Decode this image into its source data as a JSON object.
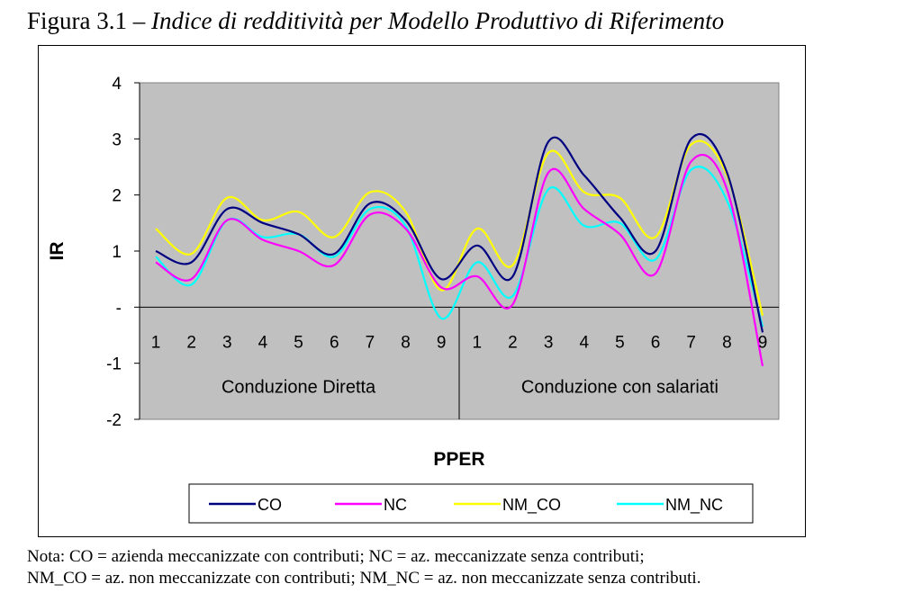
{
  "caption": {
    "prefix": "Figura 3.1 – ",
    "title": "Indice di redditività per Modello Produttivo di Riferimento"
  },
  "notes": [
    "Nota: CO = azienda meccanizzate con contributi; NC = az. meccanizzate senza contributi;",
    "NM_CO =  az. non meccanizzate con contributi; NM_NC  = az. non meccanizzate senza contributi."
  ],
  "chart_data": {
    "type": "line",
    "title": "",
    "xlabel": "PPER",
    "ylabel": "IR",
    "ylim": [
      -2,
      4
    ],
    "yticks": [
      {
        "value": 4,
        "label": "4"
      },
      {
        "value": 3,
        "label": "3"
      },
      {
        "value": 2,
        "label": "2"
      },
      {
        "value": 1,
        "label": "1"
      },
      {
        "value": 0,
        "label": "-"
      },
      {
        "value": -1,
        "label": "-1"
      },
      {
        "value": -2,
        "label": "-2"
      }
    ],
    "groups": [
      {
        "label": "Conduzione Diretta",
        "categories": [
          "1",
          "2",
          "3",
          "4",
          "5",
          "6",
          "7",
          "8",
          "9"
        ]
      },
      {
        "label": "Conduzione con salariati",
        "categories": [
          "1",
          "2",
          "3",
          "4",
          "5",
          "6",
          "7",
          "8",
          "9"
        ]
      }
    ],
    "background": "#c0c0c0",
    "grid": false,
    "legend_position": "bottom",
    "series": [
      {
        "name": "CO",
        "color": "#000080",
        "values": [
          1.0,
          0.8,
          1.75,
          1.5,
          1.3,
          0.95,
          1.85,
          1.55,
          0.5,
          1.1,
          0.55,
          2.95,
          2.35,
          1.6,
          1.0,
          3.0,
          2.4,
          -0.45
        ]
      },
      {
        "name": "NC",
        "color": "#ff00ff",
        "values": [
          0.8,
          0.5,
          1.55,
          1.2,
          1.0,
          0.75,
          1.65,
          1.4,
          0.35,
          0.55,
          0.05,
          2.4,
          1.75,
          1.3,
          0.6,
          2.6,
          2.1,
          -1.05
        ]
      },
      {
        "name": "NM_CO",
        "color": "#ffff00",
        "values": [
          1.4,
          0.95,
          1.95,
          1.55,
          1.7,
          1.25,
          2.05,
          1.7,
          0.3,
          1.4,
          0.75,
          2.75,
          2.05,
          1.95,
          1.25,
          2.9,
          2.35,
          -0.15
        ]
      },
      {
        "name": "NM_NC",
        "color": "#00ffff",
        "values": [
          0.9,
          0.4,
          1.55,
          1.25,
          1.3,
          0.9,
          1.75,
          1.45,
          -0.2,
          0.8,
          0.2,
          2.1,
          1.45,
          1.5,
          0.85,
          2.45,
          1.9,
          -0.35
        ]
      }
    ]
  }
}
